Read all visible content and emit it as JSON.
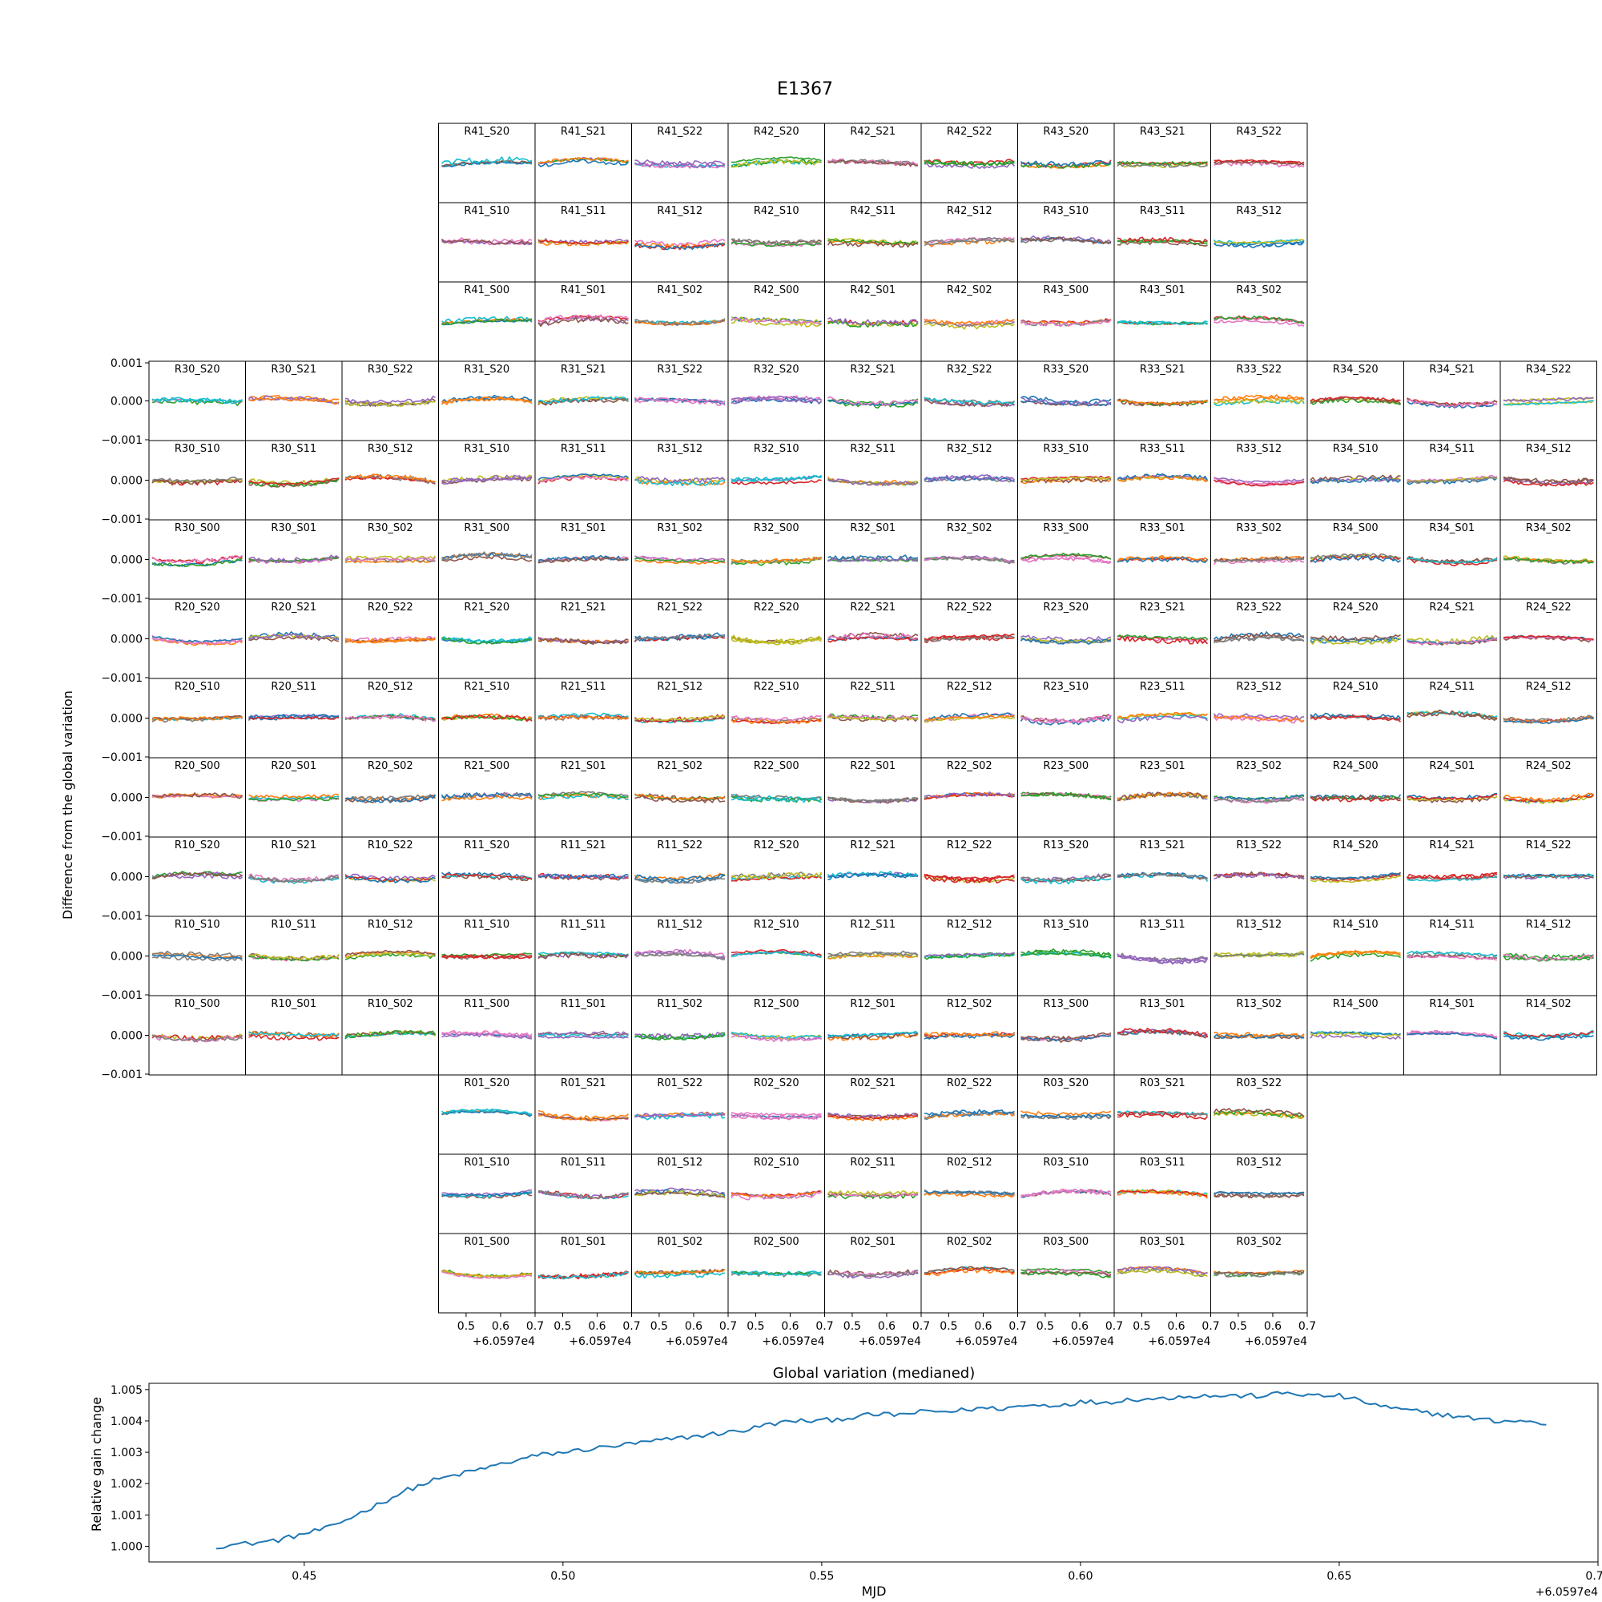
{
  "title": "E1367",
  "grid": {
    "ylabel": "Difference from the global variation",
    "ytick_labels": [
      "0.001",
      "0.000",
      "−0.001"
    ],
    "ylim": [
      -0.001,
      0.001
    ],
    "xtick_labels": [
      "0.5",
      "0.6",
      "0.7"
    ],
    "x_offset_label": "+6.0597e4",
    "xlim": [
      0.42,
      0.7
    ],
    "rows": [
      {
        "start": 3,
        "labels": [
          "R41_S20",
          "R41_S21",
          "R41_S22",
          "R42_S20",
          "R42_S21",
          "R42_S22",
          "R43_S20",
          "R43_S21",
          "R43_S22"
        ]
      },
      {
        "start": 3,
        "labels": [
          "R41_S10",
          "R41_S11",
          "R41_S12",
          "R42_S10",
          "R42_S11",
          "R42_S12",
          "R43_S10",
          "R43_S11",
          "R43_S12"
        ]
      },
      {
        "start": 3,
        "labels": [
          "R41_S00",
          "R41_S01",
          "R41_S02",
          "R42_S00",
          "R42_S01",
          "R42_S02",
          "R43_S00",
          "R43_S01",
          "R43_S02"
        ]
      },
      {
        "start": 0,
        "labels": [
          "R30_S20",
          "R30_S21",
          "R30_S22",
          "R31_S20",
          "R31_S21",
          "R31_S22",
          "R32_S20",
          "R32_S21",
          "R32_S22",
          "R33_S20",
          "R33_S21",
          "R33_S22",
          "R34_S20",
          "R34_S21",
          "R34_S22"
        ]
      },
      {
        "start": 0,
        "labels": [
          "R30_S10",
          "R30_S11",
          "R30_S12",
          "R31_S10",
          "R31_S11",
          "R31_S12",
          "R32_S10",
          "R32_S11",
          "R32_S12",
          "R33_S10",
          "R33_S11",
          "R33_S12",
          "R34_S10",
          "R34_S11",
          "R34_S12"
        ]
      },
      {
        "start": 0,
        "labels": [
          "R30_S00",
          "R30_S01",
          "R30_S02",
          "R31_S00",
          "R31_S01",
          "R31_S02",
          "R32_S00",
          "R32_S01",
          "R32_S02",
          "R33_S00",
          "R33_S01",
          "R33_S02",
          "R34_S00",
          "R34_S01",
          "R34_S02"
        ]
      },
      {
        "start": 0,
        "labels": [
          "R20_S20",
          "R20_S21",
          "R20_S22",
          "R21_S20",
          "R21_S21",
          "R21_S22",
          "R22_S20",
          "R22_S21",
          "R22_S22",
          "R23_S20",
          "R23_S21",
          "R23_S22",
          "R24_S20",
          "R24_S21",
          "R24_S22"
        ]
      },
      {
        "start": 0,
        "labels": [
          "R20_S10",
          "R20_S11",
          "R20_S12",
          "R21_S10",
          "R21_S11",
          "R21_S12",
          "R22_S10",
          "R22_S11",
          "R22_S12",
          "R23_S10",
          "R23_S11",
          "R23_S12",
          "R24_S10",
          "R24_S11",
          "R24_S12"
        ]
      },
      {
        "start": 0,
        "labels": [
          "R20_S00",
          "R20_S01",
          "R20_S02",
          "R21_S00",
          "R21_S01",
          "R21_S02",
          "R22_S00",
          "R22_S01",
          "R22_S02",
          "R23_S00",
          "R23_S01",
          "R23_S02",
          "R24_S00",
          "R24_S01",
          "R24_S02"
        ]
      },
      {
        "start": 0,
        "labels": [
          "R10_S20",
          "R10_S21",
          "R10_S22",
          "R11_S20",
          "R11_S21",
          "R11_S22",
          "R12_S20",
          "R12_S21",
          "R12_S22",
          "R13_S20",
          "R13_S21",
          "R13_S22",
          "R14_S20",
          "R14_S21",
          "R14_S22"
        ]
      },
      {
        "start": 0,
        "labels": [
          "R10_S10",
          "R10_S11",
          "R10_S12",
          "R11_S10",
          "R11_S11",
          "R11_S12",
          "R12_S10",
          "R12_S11",
          "R12_S12",
          "R13_S10",
          "R13_S11",
          "R13_S12",
          "R14_S10",
          "R14_S11",
          "R14_S12"
        ]
      },
      {
        "start": 0,
        "labels": [
          "R10_S00",
          "R10_S01",
          "R10_S02",
          "R11_S00",
          "R11_S01",
          "R11_S02",
          "R12_S00",
          "R12_S01",
          "R12_S02",
          "R13_S00",
          "R13_S01",
          "R13_S02",
          "R14_S00",
          "R14_S01",
          "R14_S02"
        ]
      },
      {
        "start": 3,
        "labels": [
          "R01_S20",
          "R01_S21",
          "R01_S22",
          "R02_S20",
          "R02_S21",
          "R02_S22",
          "R03_S20",
          "R03_S21",
          "R03_S22"
        ]
      },
      {
        "start": 3,
        "labels": [
          "R01_S10",
          "R01_S11",
          "R01_S12",
          "R02_S10",
          "R02_S11",
          "R02_S12",
          "R03_S10",
          "R03_S11",
          "R03_S12"
        ]
      },
      {
        "start": 3,
        "labels": [
          "R01_S00",
          "R01_S01",
          "R01_S02",
          "R02_S00",
          "R02_S01",
          "R02_S02",
          "R03_S00",
          "R03_S01",
          "R03_S02"
        ]
      }
    ],
    "line_colors": [
      "#1f77b4",
      "#ff7f0e",
      "#2ca02c",
      "#d62728",
      "#9467bd",
      "#8c564b",
      "#e377c2",
      "#7f7f7f",
      "#bcbd22",
      "#17becf"
    ]
  },
  "chart_data": {
    "type": "line",
    "title": "Global variation (medianed)",
    "xlabel": "MJD",
    "ylabel": "Relative gain change",
    "x_offset_label": "+6.0597e4",
    "xlim": [
      0.42,
      0.7
    ],
    "ylim": [
      0.9995,
      1.0052
    ],
    "xtick_labels": [
      "0.45",
      "0.50",
      "0.55",
      "0.60",
      "0.65",
      "0.70"
    ],
    "ytick_labels": [
      "1.000",
      "1.001",
      "1.002",
      "1.003",
      "1.004",
      "1.005"
    ],
    "color": "#1f77b4",
    "x": [
      0.433,
      0.44,
      0.445,
      0.45,
      0.455,
      0.46,
      0.465,
      0.47,
      0.475,
      0.48,
      0.485,
      0.49,
      0.495,
      0.5,
      0.505,
      0.51,
      0.515,
      0.52,
      0.525,
      0.53,
      0.535,
      0.54,
      0.545,
      0.55,
      0.555,
      0.56,
      0.565,
      0.57,
      0.575,
      0.58,
      0.585,
      0.59,
      0.595,
      0.6,
      0.605,
      0.61,
      0.615,
      0.62,
      0.625,
      0.63,
      0.635,
      0.64,
      0.645,
      0.65,
      0.655,
      0.66,
      0.665,
      0.67,
      0.675,
      0.68,
      0.685,
      0.69
    ],
    "y": [
      1.0,
      1.0001,
      1.0002,
      1.0004,
      1.0006,
      1.001,
      1.0014,
      1.0018,
      1.0021,
      1.0023,
      1.0025,
      1.0027,
      1.0029,
      1.003,
      1.0031,
      1.0032,
      1.0033,
      1.0034,
      1.0035,
      1.0036,
      1.0037,
      1.0039,
      1.004,
      1.004,
      1.0041,
      1.0042,
      1.0042,
      1.0043,
      1.0043,
      1.0044,
      1.0044,
      1.0045,
      1.0045,
      1.0046,
      1.0046,
      1.0047,
      1.0047,
      1.0048,
      1.0048,
      1.0048,
      1.0048,
      1.0049,
      1.0048,
      1.0048,
      1.0046,
      1.0044,
      1.0043,
      1.0042,
      1.0041,
      1.004,
      1.004,
      1.0039
    ]
  }
}
